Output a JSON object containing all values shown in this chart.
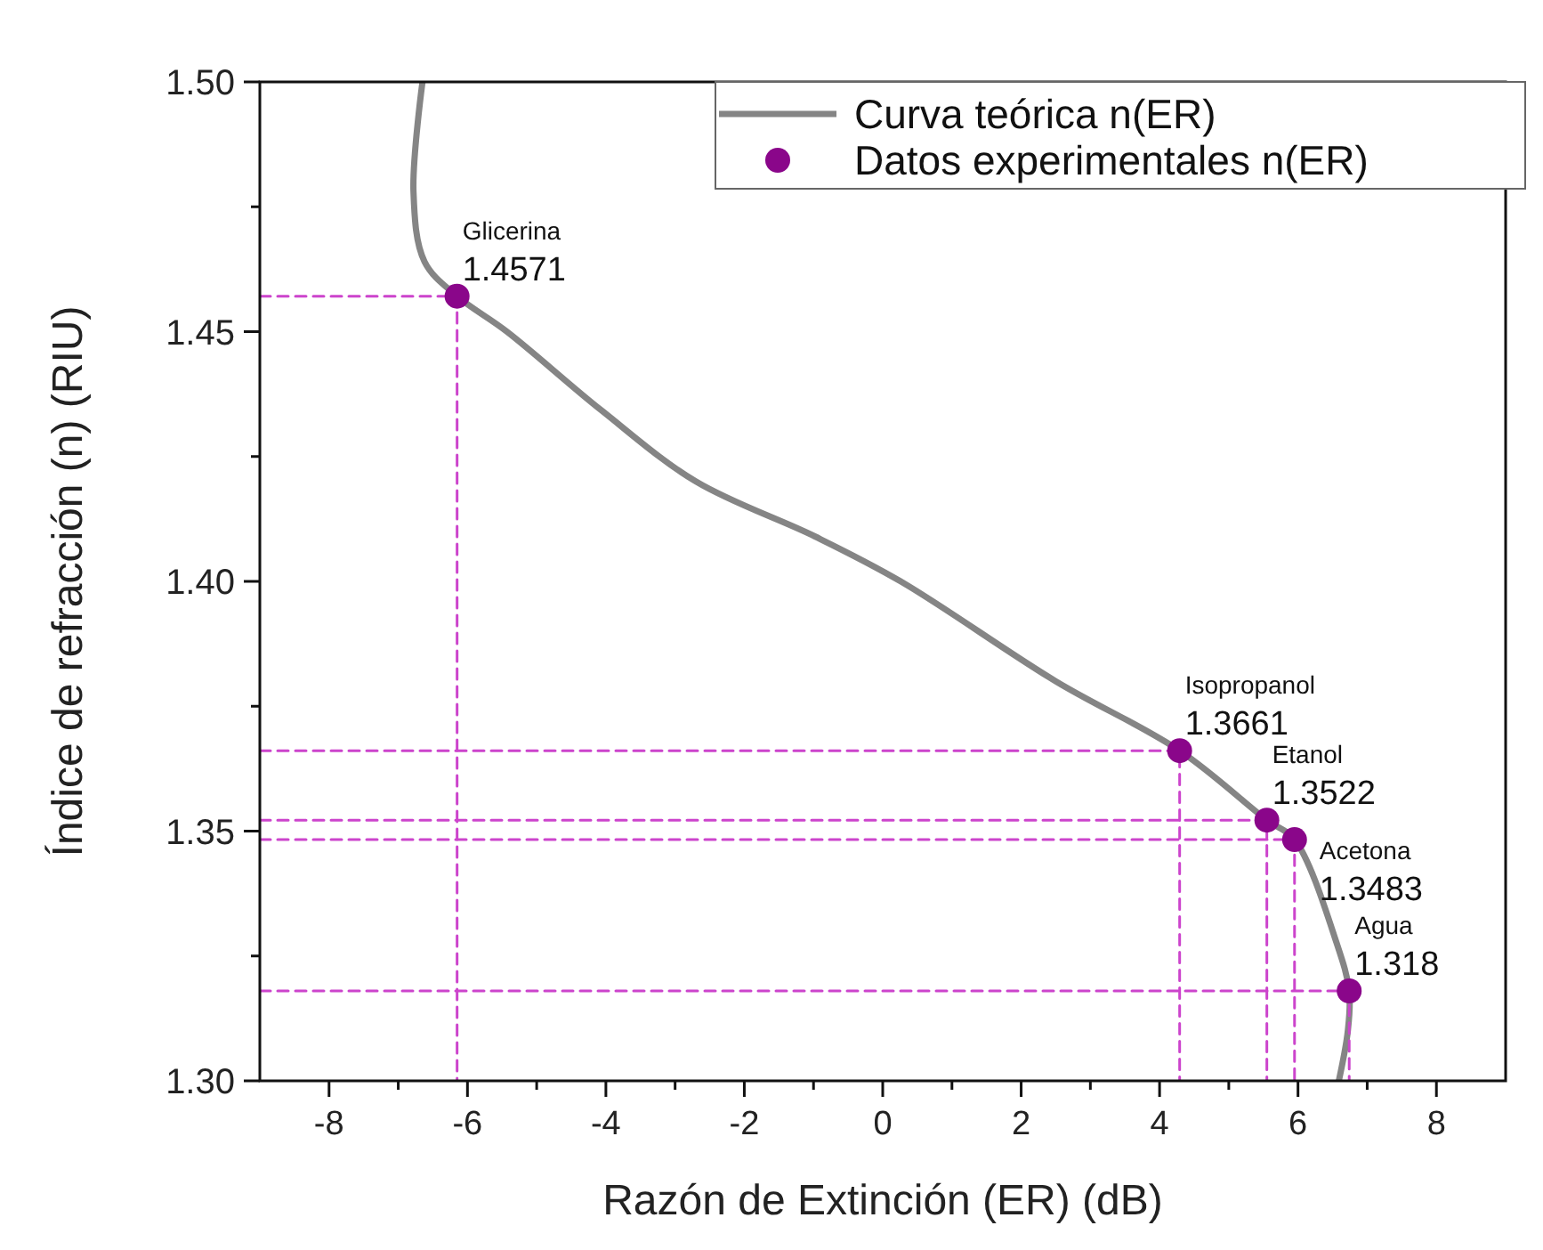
{
  "chart_data": {
    "type": "scatter",
    "xlabel": "Razón de Extinción (ER) (dB)",
    "ylabel": "Índice de refracción (n) (RIU)",
    "xlim": [
      -9,
      9
    ],
    "ylim": [
      1.3,
      1.5
    ],
    "xticks": [
      -8,
      {
        "value": -7,
        "label": null
      },
      -6,
      {
        "value": -5,
        "label": null
      },
      -4,
      {
        "value": -3,
        "label": null
      },
      -2,
      {
        "value": -1,
        "label": null
      },
      0,
      {
        "value": 1,
        "label": null
      },
      2,
      {
        "value": 3,
        "label": null
      },
      4,
      {
        "value": 5,
        "label": null
      },
      6,
      {
        "value": 7,
        "label": null
      },
      8
    ],
    "yticks": [
      {
        "value": 1.3,
        "label": "1.30"
      },
      {
        "value": 1.325,
        "label": null
      },
      {
        "value": 1.35,
        "label": "1.35"
      },
      {
        "value": 1.375,
        "label": null
      },
      {
        "value": 1.4,
        "label": "1.40"
      },
      {
        "value": 1.425,
        "label": null
      },
      {
        "value": 1.45,
        "label": "1.45"
      },
      {
        "value": 1.475,
        "label": null
      },
      {
        "value": 1.5,
        "label": "1.50"
      }
    ],
    "grid": false,
    "legend": "top right",
    "series": [
      {
        "type": "line",
        "name": "Curva teórica n(ER)",
        "color": "#858585",
        "marker": "none",
        "line_style": "solid",
        "x": [
          -6.65,
          -6.78,
          -6.62,
          -6.15,
          -5.43,
          -4.07,
          -2.7,
          -0.98,
          0.26,
          2.5,
          4.29,
          5.55,
          5.95,
          6.56,
          6.74,
          6.72,
          6.59
        ],
        "values": [
          1.5,
          1.478,
          1.464,
          1.4571,
          1.45,
          1.4343,
          1.42,
          1.409,
          1.4,
          1.38,
          1.3661,
          1.3522,
          1.3483,
          1.3275,
          1.318,
          1.31,
          1.3
        ]
      },
      {
        "type": "line",
        "color": "#cc44cc",
        "marker": "none",
        "line_style": "dashed",
        "x": [
          -9,
          -6.15,
          -6.15
        ],
        "values": [
          1.4571,
          1.4571,
          1.3
        ]
      },
      {
        "type": "line",
        "color": "#cc44cc",
        "marker": "none",
        "line_style": "dashed",
        "x": [
          -9,
          4.29,
          4.29
        ],
        "values": [
          1.3661,
          1.3661,
          1.3
        ]
      },
      {
        "type": "line",
        "color": "#cc44cc",
        "marker": "none",
        "line_style": "dashed",
        "x": [
          -9,
          5.55,
          5.55
        ],
        "values": [
          1.3522,
          1.3522,
          1.3
        ]
      },
      {
        "type": "line",
        "color": "#cc44cc",
        "marker": "none",
        "line_style": "dashed",
        "x": [
          -9,
          5.95,
          5.95
        ],
        "values": [
          1.3483,
          1.3483,
          1.3
        ]
      },
      {
        "type": "line",
        "color": "#cc44cc",
        "marker": "none",
        "line_style": "dashed",
        "x": [
          -9,
          6.74,
          6.74
        ],
        "values": [
          1.318,
          1.318,
          1.3
        ]
      },
      {
        "name": "Datos experimentales n(ER)",
        "color": "#8a068a",
        "marker": "circle",
        "x": [
          -6.15,
          4.29,
          5.55,
          5.95,
          6.74
        ],
        "values": [
          1.4571,
          1.3661,
          1.3522,
          1.3483,
          1.318
        ],
        "value_labels": [
          "1.4571",
          "1.3661",
          "1.3522",
          "1.3483",
          "1.318"
        ]
      }
    ],
    "annotations": [
      {
        "text": "Glicerina",
        "x": -6.15,
        "y": 1.4571
      },
      {
        "text": "Isopropanol",
        "x": 4.29,
        "y": 1.3661
      },
      {
        "text": "Etanol",
        "x": 5.55,
        "y": 1.3522
      },
      {
        "text": "Acetona",
        "x": 5.95,
        "y": 1.3483
      },
      {
        "text": "Agua",
        "x": 6.74,
        "y": 1.318
      }
    ]
  }
}
